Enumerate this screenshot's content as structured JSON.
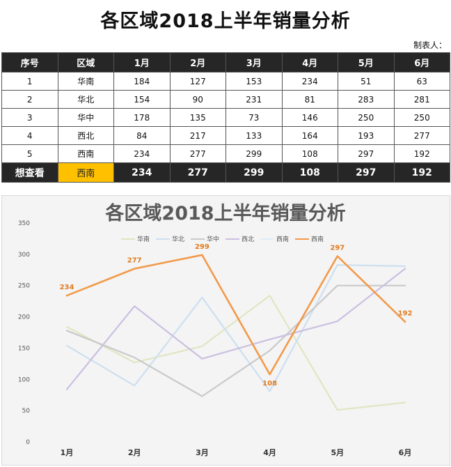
{
  "title": "各区域2018上半年销量分析",
  "maker_label": "制表人：",
  "table": {
    "headers": [
      "序号",
      "区域",
      "1月",
      "2月",
      "3月",
      "4月",
      "5月",
      "6月"
    ],
    "rows": [
      {
        "no": "1",
        "region": "华南",
        "values": [
          184,
          127,
          153,
          234,
          51,
          63
        ]
      },
      {
        "no": "2",
        "region": "华北",
        "values": [
          154,
          90,
          231,
          81,
          283,
          281
        ]
      },
      {
        "no": "3",
        "region": "华中",
        "values": [
          178,
          135,
          73,
          146,
          250,
          250
        ]
      },
      {
        "no": "4",
        "region": "西北",
        "values": [
          84,
          217,
          133,
          164,
          193,
          277
        ]
      },
      {
        "no": "5",
        "region": "西南",
        "values": [
          234,
          277,
          299,
          108,
          297,
          192
        ]
      }
    ],
    "footer": {
      "label": "想查看",
      "selected": "西南",
      "values": [
        234,
        277,
        299,
        108,
        297,
        192
      ]
    }
  },
  "chart_data": {
    "type": "line",
    "title": "各区域2018上半年销量分析",
    "categories": [
      "1月",
      "2月",
      "3月",
      "4月",
      "5月",
      "6月"
    ],
    "ylim": [
      0,
      350
    ],
    "yticks": [
      0,
      50,
      100,
      150,
      200,
      250,
      300,
      350
    ],
    "grid": false,
    "legend": "top",
    "series": [
      {
        "name": "华南",
        "values": [
          184,
          127,
          153,
          234,
          51,
          63
        ],
        "color": "#dfe6c2"
      },
      {
        "name": "华北",
        "values": [
          154,
          90,
          231,
          81,
          283,
          281
        ],
        "color": "#cddff0"
      },
      {
        "name": "华中",
        "values": [
          178,
          135,
          73,
          146,
          250,
          250
        ],
        "color": "#c9c9c9"
      },
      {
        "name": "西北",
        "values": [
          84,
          217,
          133,
          164,
          193,
          277
        ],
        "color": "#cbbfe0"
      },
      {
        "name": "西南",
        "values": [
          234,
          277,
          299,
          108,
          297,
          192
        ],
        "color": "#ddeef8"
      },
      {
        "name": "西南",
        "values": [
          234,
          277,
          299,
          108,
          297,
          192
        ],
        "color": "#f29a4a",
        "highlight": true
      }
    ]
  }
}
